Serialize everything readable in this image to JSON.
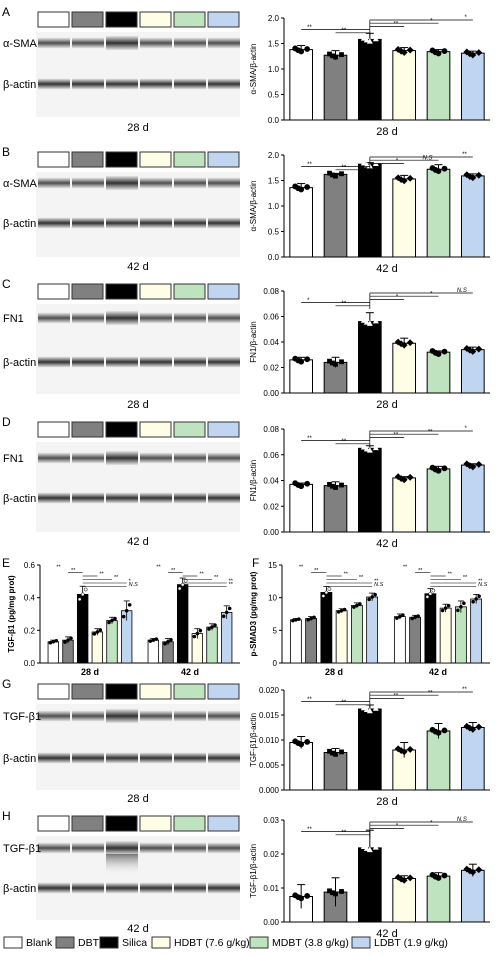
{
  "legend": [
    {
      "label": "Blank",
      "color": "#ffffff"
    },
    {
      "label": "DBT",
      "color": "#808080"
    },
    {
      "label": "Silica",
      "color": "#000000"
    },
    {
      "label": "HDBT (7.6 g/kg)",
      "color": "#fffde6"
    },
    {
      "label": "MDBT (3.8 g/kg)",
      "color": "#bfe2bf"
    },
    {
      "label": "LDBT (1.9 g/kg)",
      "color": "#c0d6f0"
    }
  ],
  "blots": [
    {
      "id": "A",
      "label": "A",
      "protein": "α-SMA",
      "loading": "β-actin",
      "time": "28 d"
    },
    {
      "id": "B",
      "label": "B",
      "protein": "α-SMA",
      "loading": "β-actin",
      "time": "42 d"
    },
    {
      "id": "C",
      "label": "C",
      "protein": "FN1",
      "loading": "β-actin",
      "time": "28 d"
    },
    {
      "id": "D",
      "label": "D",
      "protein": "FN1",
      "loading": "β-actin",
      "time": "42 d"
    },
    {
      "id": "G",
      "label": "G",
      "protein": "TGF-β1",
      "loading": "β-actin",
      "time": "28 d"
    },
    {
      "id": "H",
      "label": "H",
      "protein": "TGF-β1",
      "loading": "β-actin",
      "time": "42 d"
    }
  ],
  "chart_data": [
    {
      "panel": "A",
      "type": "bar",
      "ylabel": "α-SMA/β-actin",
      "xlabel": "28 d",
      "ylim": [
        0,
        2.0
      ],
      "yticks": [
        "0.0",
        "0.5",
        "1.0",
        "1.5",
        "2.0"
      ],
      "values": [
        1.38,
        1.27,
        1.58,
        1.36,
        1.34,
        1.31
      ],
      "errors": [
        0.08,
        0.09,
        0.12,
        0.06,
        0.04,
        0.04
      ],
      "sig": [
        "**",
        "**",
        "**",
        "*",
        "*"
      ]
    },
    {
      "panel": "B",
      "type": "bar",
      "ylabel": "α-SMA/β-actin",
      "xlabel": "42 d",
      "ylim": [
        0,
        2.0
      ],
      "yticks": [
        "0.0",
        "0.5",
        "1.0",
        "1.5",
        "2.0"
      ],
      "values": [
        1.36,
        1.62,
        1.82,
        1.53,
        1.72,
        1.59
      ],
      "errors": [
        0.08,
        0.02,
        0.03,
        0.07,
        0.09,
        0.04
      ],
      "sig": [
        "**",
        "**",
        "*",
        "N.S",
        "**"
      ]
    },
    {
      "panel": "C",
      "type": "bar",
      "ylabel": "FN1/β-actin",
      "xlabel": "28 d",
      "ylim": [
        0,
        0.08
      ],
      "yticks": [
        "0.00",
        "0.02",
        "0.04",
        "0.06",
        "0.08"
      ],
      "values": [
        0.026,
        0.024,
        0.056,
        0.039,
        0.032,
        0.034
      ],
      "errors": [
        0.002,
        0.004,
        0.007,
        0.004,
        0.001,
        0.002
      ],
      "sig": [
        "*",
        "**",
        "*",
        "*",
        "N.S"
      ]
    },
    {
      "panel": "D",
      "type": "bar",
      "ylabel": "FN1/β-actin",
      "xlabel": "42 d",
      "ylim": [
        0,
        0.08
      ],
      "yticks": [
        "0.00",
        "0.02",
        "0.04",
        "0.06",
        "0.08"
      ],
      "values": [
        0.037,
        0.036,
        0.065,
        0.042,
        0.049,
        0.052
      ],
      "errors": [
        0.001,
        0.003,
        0.002,
        0.001,
        0.002,
        0.001
      ],
      "sig": [
        "**",
        "**",
        "**",
        "**",
        "*"
      ]
    },
    {
      "panel": "E",
      "type": "bar",
      "ylabel": "TGF-β1 (pg/mg prot)",
      "ylim": [
        0,
        0.6
      ],
      "yticks": [
        "0.0",
        "0.2",
        "0.4",
        "0.6"
      ],
      "categories": [
        "28 d",
        "42 d"
      ],
      "series": [
        {
          "values": [
            0.13,
            0.14
          ],
          "errors": [
            0.01,
            0.01
          ]
        },
        {
          "values": [
            0.14,
            0.13
          ],
          "errors": [
            0.02,
            0.02
          ]
        },
        {
          "values": [
            0.42,
            0.48
          ],
          "errors": [
            0.05,
            0.04
          ]
        },
        {
          "values": [
            0.19,
            0.18
          ],
          "errors": [
            0.02,
            0.03
          ]
        },
        {
          "values": [
            0.26,
            0.22
          ],
          "errors": [
            0.02,
            0.02
          ]
        },
        {
          "values": [
            0.32,
            0.31
          ],
          "errors": [
            0.06,
            0.04
          ]
        }
      ],
      "sig": [
        [
          "**",
          "**",
          "**",
          "**",
          "*",
          "N.S"
        ],
        [
          "**",
          "**",
          "**",
          "**",
          "**",
          "**"
        ]
      ]
    },
    {
      "panel": "F",
      "type": "bar",
      "ylabel": "p-SMAD3 (pg/mg prot)",
      "ylim": [
        0,
        15
      ],
      "yticks": [
        "0",
        "5",
        "10",
        "15"
      ],
      "categories": [
        "28 d",
        "42 d"
      ],
      "series": [
        {
          "values": [
            6.6,
            7.1
          ],
          "errors": [
            0.2,
            0.4
          ]
        },
        {
          "values": [
            6.8,
            7.0
          ],
          "errors": [
            0.3,
            0.3
          ]
        },
        {
          "values": [
            10.8,
            10.6
          ],
          "errors": [
            0.9,
            0.8
          ]
        },
        {
          "values": [
            8.0,
            8.4
          ],
          "errors": [
            0.3,
            0.6
          ]
        },
        {
          "values": [
            8.8,
            8.6
          ],
          "errors": [
            0.4,
            0.9
          ]
        },
        {
          "values": [
            10.1,
            9.8
          ],
          "errors": [
            0.6,
            0.7
          ]
        }
      ],
      "sig": [
        [
          "**",
          "**",
          "**",
          "**",
          "**",
          "N.S"
        ],
        [
          "**",
          "**",
          "**",
          "**",
          "**",
          "N.S"
        ]
      ]
    },
    {
      "panel": "G",
      "type": "bar",
      "ylabel": "TGF-β1/β-actin",
      "xlabel": "28 d",
      "ylim": [
        0,
        0.02
      ],
      "yticks": [
        "0.000",
        "0.005",
        "0.010",
        "0.015",
        "0.020"
      ],
      "values": [
        0.0095,
        0.0075,
        0.0162,
        0.008,
        0.0118,
        0.0125
      ],
      "errors": [
        0.0012,
        0.0008,
        0.0008,
        0.0015,
        0.0015,
        0.001
      ],
      "sig": [
        "**",
        "**",
        "**",
        "**",
        "**"
      ]
    },
    {
      "panel": "H",
      "type": "bar",
      "ylabel": "TGF-β1/β-actin",
      "xlabel": "42 d",
      "ylim": [
        0,
        0.03
      ],
      "yticks": [
        "0.00",
        "0.01",
        "0.02",
        "0.03"
      ],
      "values": [
        0.0075,
        0.0088,
        0.0218,
        0.0128,
        0.0135,
        0.0152
      ],
      "errors": [
        0.0035,
        0.0042,
        0.0052,
        0.0008,
        0.001,
        0.0018
      ],
      "sig": [
        "**",
        "**",
        "*",
        "*",
        "N.S"
      ]
    }
  ]
}
